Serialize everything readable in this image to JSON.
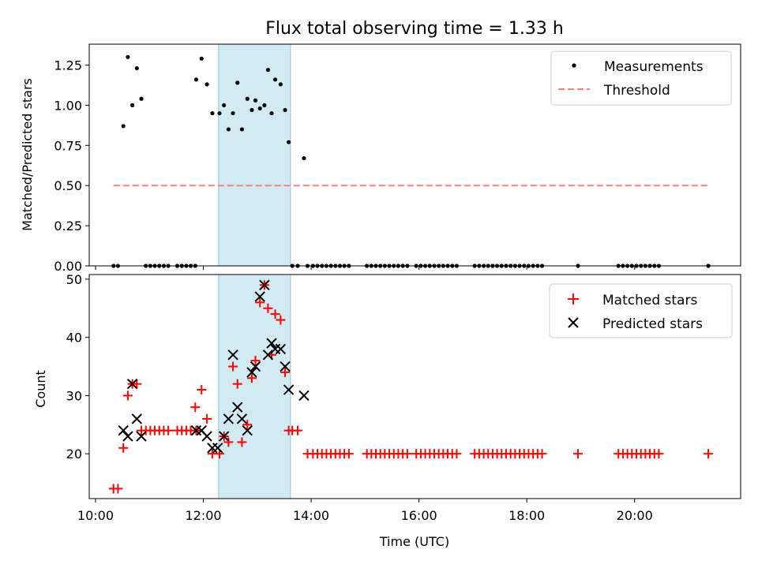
{
  "figure": {
    "title": "Flux total observing time = 1.33 h",
    "shaded_region": {
      "start": "12:17",
      "end": "13:37",
      "color": "#add8e6"
    }
  },
  "chart_data": [
    {
      "type": "scatter",
      "ylabel": "Matched/Predicted stars",
      "xlim": [
        "09:53",
        "21:58"
      ],
      "ylim": [
        0,
        1.38
      ],
      "yticks": [
        "0.00",
        "0.25",
        "0.50",
        "0.75",
        "1.00",
        "1.25"
      ],
      "grid": false,
      "legend_placement": "top-right",
      "series": [
        {
          "name": "Measurements",
          "kind": "points",
          "color": "#000000",
          "points": [
            [
              "10:20",
              0
            ],
            [
              "10:25",
              0
            ],
            [
              "10:31",
              0.87
            ],
            [
              "10:36",
              1.3
            ],
            [
              "10:41",
              1.0
            ],
            [
              "10:46",
              1.23
            ],
            [
              "10:51",
              1.04
            ],
            [
              "10:56",
              0
            ],
            [
              "11:01",
              0
            ],
            [
              "11:06",
              0
            ],
            [
              "11:11",
              0
            ],
            [
              "11:16",
              0
            ],
            [
              "11:21",
              0
            ],
            [
              "11:31",
              0
            ],
            [
              "11:36",
              0
            ],
            [
              "11:41",
              0
            ],
            [
              "11:46",
              0
            ],
            [
              "11:51",
              0
            ],
            [
              "11:52",
              1.16
            ],
            [
              "11:58",
              1.29
            ],
            [
              "12:04",
              1.13
            ],
            [
              "12:10",
              0.95
            ],
            [
              "12:18",
              0.95
            ],
            [
              "12:23",
              1.0
            ],
            [
              "12:28",
              0.85
            ],
            [
              "12:33",
              0.95
            ],
            [
              "12:38",
              1.14
            ],
            [
              "12:43",
              0.85
            ],
            [
              "12:49",
              1.04
            ],
            [
              "12:54",
              0.97
            ],
            [
              "12:58",
              1.03
            ],
            [
              "13:03",
              0.98
            ],
            [
              "13:08",
              1.0
            ],
            [
              "13:12",
              1.22
            ],
            [
              "13:16",
              0.95
            ],
            [
              "13:20",
              1.16
            ],
            [
              "13:26",
              1.13
            ],
            [
              "13:31",
              0.97
            ],
            [
              "13:35",
              0.77
            ],
            [
              "13:39",
              0
            ],
            [
              "13:45",
              0
            ],
            [
              "13:52",
              0.67
            ],
            [
              "13:56",
              0
            ],
            [
              "14:02",
              0
            ],
            [
              "14:07",
              0
            ],
            [
              "14:12",
              0
            ],
            [
              "14:17",
              0
            ],
            [
              "14:22",
              0
            ],
            [
              "14:27",
              0
            ],
            [
              "14:32",
              0
            ],
            [
              "14:37",
              0
            ],
            [
              "14:42",
              0
            ],
            [
              "15:02",
              0
            ],
            [
              "15:07",
              0
            ],
            [
              "15:12",
              0
            ],
            [
              "15:17",
              0
            ],
            [
              "15:22",
              0
            ],
            [
              "15:27",
              0
            ],
            [
              "15:32",
              0
            ],
            [
              "15:37",
              0
            ],
            [
              "15:42",
              0
            ],
            [
              "15:47",
              0
            ],
            [
              "15:57",
              0
            ],
            [
              "16:02",
              0
            ],
            [
              "16:07",
              0
            ],
            [
              "16:12",
              0
            ],
            [
              "16:17",
              0
            ],
            [
              "16:22",
              0
            ],
            [
              "16:27",
              0
            ],
            [
              "16:32",
              0
            ],
            [
              "16:37",
              0
            ],
            [
              "16:42",
              0
            ],
            [
              "17:02",
              0
            ],
            [
              "17:07",
              0
            ],
            [
              "17:12",
              0
            ],
            [
              "17:17",
              0
            ],
            [
              "17:22",
              0
            ],
            [
              "17:27",
              0
            ],
            [
              "17:32",
              0
            ],
            [
              "17:37",
              0
            ],
            [
              "17:42",
              0
            ],
            [
              "17:47",
              0
            ],
            [
              "17:52",
              0
            ],
            [
              "17:57",
              0
            ],
            [
              "18:02",
              0
            ],
            [
              "18:07",
              0
            ],
            [
              "18:12",
              0
            ],
            [
              "18:17",
              0
            ],
            [
              "18:57",
              0
            ],
            [
              "19:42",
              0
            ],
            [
              "19:47",
              0
            ],
            [
              "19:52",
              0
            ],
            [
              "19:57",
              0
            ],
            [
              "20:02",
              0
            ],
            [
              "20:07",
              0
            ],
            [
              "20:12",
              0
            ],
            [
              "20:17",
              0
            ],
            [
              "20:22",
              0
            ],
            [
              "20:27",
              0
            ],
            [
              "21:22",
              0
            ]
          ]
        },
        {
          "name": "Threshold",
          "kind": "dashed-line",
          "color": "#ff7f7f",
          "points": [
            [
              "10:20",
              0.5
            ],
            [
              "21:22",
              0.5
            ]
          ]
        }
      ]
    },
    {
      "type": "scatter",
      "xlabel": "Time (UTC)",
      "ylabel": "Count",
      "xlim": [
        "09:53",
        "21:58"
      ],
      "ylim": [
        12.3,
        50.8
      ],
      "xticks": [
        "10:00",
        "12:00",
        "14:00",
        "16:00",
        "18:00",
        "20:00"
      ],
      "yticks": [
        "20",
        "30",
        "40",
        "50"
      ],
      "grid": false,
      "legend_placement": "top-right",
      "series": [
        {
          "name": "Matched stars",
          "kind": "plus",
          "color": "#ff0000",
          "points": [
            [
              "10:20",
              14
            ],
            [
              "10:25",
              14
            ],
            [
              "10:31",
              21
            ],
            [
              "10:36",
              30
            ],
            [
              "10:41",
              32
            ],
            [
              "10:46",
              32
            ],
            [
              "10:51",
              24
            ],
            [
              "10:56",
              24
            ],
            [
              "11:01",
              24
            ],
            [
              "11:06",
              24
            ],
            [
              "11:11",
              24
            ],
            [
              "11:16",
              24
            ],
            [
              "11:21",
              24
            ],
            [
              "11:31",
              24
            ],
            [
              "11:36",
              24
            ],
            [
              "11:41",
              24
            ],
            [
              "11:46",
              24
            ],
            [
              "11:51",
              28
            ],
            [
              "11:52",
              24
            ],
            [
              "11:58",
              31
            ],
            [
              "12:04",
              26
            ],
            [
              "12:10",
              20
            ],
            [
              "12:18",
              20
            ],
            [
              "12:23",
              23
            ],
            [
              "12:28",
              22
            ],
            [
              "12:33",
              35
            ],
            [
              "12:38",
              32
            ],
            [
              "12:43",
              22
            ],
            [
              "12:49",
              25
            ],
            [
              "12:54",
              33
            ],
            [
              "12:58",
              36
            ],
            [
              "13:03",
              46
            ],
            [
              "13:08",
              49
            ],
            [
              "13:12",
              45
            ],
            [
              "13:16",
              37
            ],
            [
              "13:20",
              44
            ],
            [
              "13:26",
              43
            ],
            [
              "13:31",
              34
            ],
            [
              "13:35",
              24
            ],
            [
              "13:39",
              24
            ],
            [
              "13:45",
              24
            ],
            [
              "13:56",
              20
            ],
            [
              "14:02",
              20
            ],
            [
              "14:07",
              20
            ],
            [
              "14:12",
              20
            ],
            [
              "14:17",
              20
            ],
            [
              "14:22",
              20
            ],
            [
              "14:27",
              20
            ],
            [
              "14:32",
              20
            ],
            [
              "14:37",
              20
            ],
            [
              "14:42",
              20
            ],
            [
              "15:02",
              20
            ],
            [
              "15:07",
              20
            ],
            [
              "15:12",
              20
            ],
            [
              "15:17",
              20
            ],
            [
              "15:22",
              20
            ],
            [
              "15:27",
              20
            ],
            [
              "15:32",
              20
            ],
            [
              "15:37",
              20
            ],
            [
              "15:42",
              20
            ],
            [
              "15:47",
              20
            ],
            [
              "15:57",
              20
            ],
            [
              "16:02",
              20
            ],
            [
              "16:07",
              20
            ],
            [
              "16:12",
              20
            ],
            [
              "16:17",
              20
            ],
            [
              "16:22",
              20
            ],
            [
              "16:27",
              20
            ],
            [
              "16:32",
              20
            ],
            [
              "16:37",
              20
            ],
            [
              "16:42",
              20
            ],
            [
              "17:02",
              20
            ],
            [
              "17:07",
              20
            ],
            [
              "17:12",
              20
            ],
            [
              "17:17",
              20
            ],
            [
              "17:22",
              20
            ],
            [
              "17:27",
              20
            ],
            [
              "17:32",
              20
            ],
            [
              "17:37",
              20
            ],
            [
              "17:42",
              20
            ],
            [
              "17:47",
              20
            ],
            [
              "17:52",
              20
            ],
            [
              "17:57",
              20
            ],
            [
              "18:02",
              20
            ],
            [
              "18:07",
              20
            ],
            [
              "18:12",
              20
            ],
            [
              "18:17",
              20
            ],
            [
              "18:57",
              20
            ],
            [
              "19:42",
              20
            ],
            [
              "19:47",
              20
            ],
            [
              "19:52",
              20
            ],
            [
              "19:57",
              20
            ],
            [
              "20:02",
              20
            ],
            [
              "20:07",
              20
            ],
            [
              "20:12",
              20
            ],
            [
              "20:17",
              20
            ],
            [
              "20:22",
              20
            ],
            [
              "20:27",
              20
            ],
            [
              "21:22",
              20
            ]
          ]
        },
        {
          "name": "Predicted stars",
          "kind": "x",
          "color": "#000000",
          "points": [
            [
              "10:31",
              24
            ],
            [
              "10:36",
              23
            ],
            [
              "10:41",
              32
            ],
            [
              "10:46",
              26
            ],
            [
              "10:51",
              23
            ],
            [
              "11:52",
              24
            ],
            [
              "11:58",
              24
            ],
            [
              "12:04",
              23
            ],
            [
              "12:10",
              21
            ],
            [
              "12:16",
              21
            ],
            [
              "12:23",
              23
            ],
            [
              "12:28",
              26
            ],
            [
              "12:33",
              37
            ],
            [
              "12:38",
              28
            ],
            [
              "12:43",
              26
            ],
            [
              "12:49",
              24
            ],
            [
              "12:54",
              34
            ],
            [
              "12:58",
              35
            ],
            [
              "13:03",
              47
            ],
            [
              "13:08",
              49
            ],
            [
              "13:12",
              37
            ],
            [
              "13:16",
              39
            ],
            [
              "13:20",
              38
            ],
            [
              "13:26",
              38
            ],
            [
              "13:31",
              35
            ],
            [
              "13:35",
              31
            ],
            [
              "13:52",
              30
            ]
          ]
        }
      ]
    }
  ]
}
